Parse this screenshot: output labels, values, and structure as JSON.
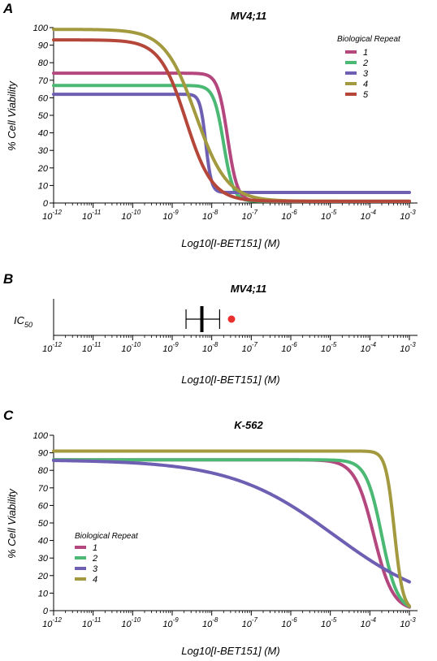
{
  "figure": {
    "panels": [
      {
        "letter": "A",
        "title": "MV4;11"
      },
      {
        "letter": "B",
        "title": "MV4;11"
      },
      {
        "letter": "C",
        "title": "K-562"
      }
    ]
  },
  "colors": {
    "repeat_1": "#b5477f",
    "repeat_2": "#4bb873",
    "repeat_3": "#6e5fb3",
    "repeat_4": "#a39a3f",
    "repeat_5": "#b5473a",
    "ic50_point": "#e8302e",
    "axis": "#000000"
  },
  "chart_data": [
    {
      "type": "line",
      "panel": "A",
      "title": "MV4;11",
      "xlabel": "Log10[I-BET151] (M)",
      "ylabel": "% Cell Viability",
      "x_scale": "log",
      "xlim_exponents": [
        -12,
        -3
      ],
      "x_tick_labels": [
        "10-12",
        "10-11",
        "10-10",
        "10-9",
        "10-8",
        "10-7",
        "10-6",
        "10-5",
        "10-4",
        "10-3"
      ],
      "ylim": [
        0,
        100
      ],
      "y_ticks": [
        0,
        10,
        20,
        30,
        40,
        50,
        60,
        70,
        80,
        90,
        100
      ],
      "legend": {
        "title": "Biological Repeat",
        "placement": "top-right"
      },
      "series": [
        {
          "name": "1",
          "color": "#b5477f",
          "top": 74,
          "bottom": 1,
          "log_ic50": -7.6,
          "hill": 3.5
        },
        {
          "name": "2",
          "color": "#4bb873",
          "top": 67,
          "bottom": 1,
          "log_ic50": -7.7,
          "hill": 3.5
        },
        {
          "name": "3",
          "color": "#6e5fb3",
          "top": 62,
          "bottom": 6,
          "log_ic50": -8.15,
          "hill": 6
        },
        {
          "name": "4",
          "color": "#a39a3f",
          "top": 99,
          "bottom": 1,
          "log_ic50": -8.4,
          "hill": 1.1
        },
        {
          "name": "5",
          "color": "#b5473a",
          "top": 93,
          "bottom": 1,
          "log_ic50": -8.65,
          "hill": 1.3
        }
      ]
    },
    {
      "type": "scatter",
      "panel": "B",
      "title": "MV4;11",
      "xlabel": "Log10[I-BET151] (M)",
      "ylabel": "IC50",
      "x_scale": "log",
      "xlim_exponents": [
        -12,
        -3
      ],
      "x_tick_labels": [
        "10-12",
        "10-11",
        "10-10",
        "10-9",
        "10-8",
        "10-7",
        "10-6",
        "10-5",
        "10-4",
        "10-3"
      ],
      "mean_log_ic50": -8.25,
      "error_range_log": [
        -8.65,
        -7.8
      ],
      "points_log": [
        -7.5
      ]
    },
    {
      "type": "line",
      "panel": "C",
      "title": "K-562",
      "xlabel": "Log10[I-BET151] (M)",
      "ylabel": "% Cell Viability",
      "x_scale": "log",
      "xlim_exponents": [
        -12,
        -3
      ],
      "x_tick_labels": [
        "10-12",
        "10-11",
        "10-10",
        "10-9",
        "10-8",
        "10-7",
        "10-6",
        "10-5",
        "10-4",
        "10-3"
      ],
      "ylim": [
        0,
        100
      ],
      "y_ticks": [
        0,
        10,
        20,
        30,
        40,
        50,
        60,
        70,
        80,
        90,
        100
      ],
      "legend": {
        "title": "Biological Repeat",
        "placement": "bottom-left"
      },
      "series": [
        {
          "name": "1",
          "color": "#b5477f",
          "top": 86,
          "bottom": 0,
          "log_ic50": -3.9,
          "hill": 1.8
        },
        {
          "name": "2",
          "color": "#4bb873",
          "top": 86,
          "bottom": 0,
          "log_ic50": -3.7,
          "hill": 2.2
        },
        {
          "name": "3",
          "color": "#6e5fb3",
          "top": 86,
          "bottom": 0,
          "log_ic50": -4.9,
          "hill": 0.33
        },
        {
          "name": "4",
          "color": "#a39a3f",
          "top": 91,
          "bottom": 0,
          "log_ic50": -3.38,
          "hill": 4
        }
      ]
    }
  ]
}
